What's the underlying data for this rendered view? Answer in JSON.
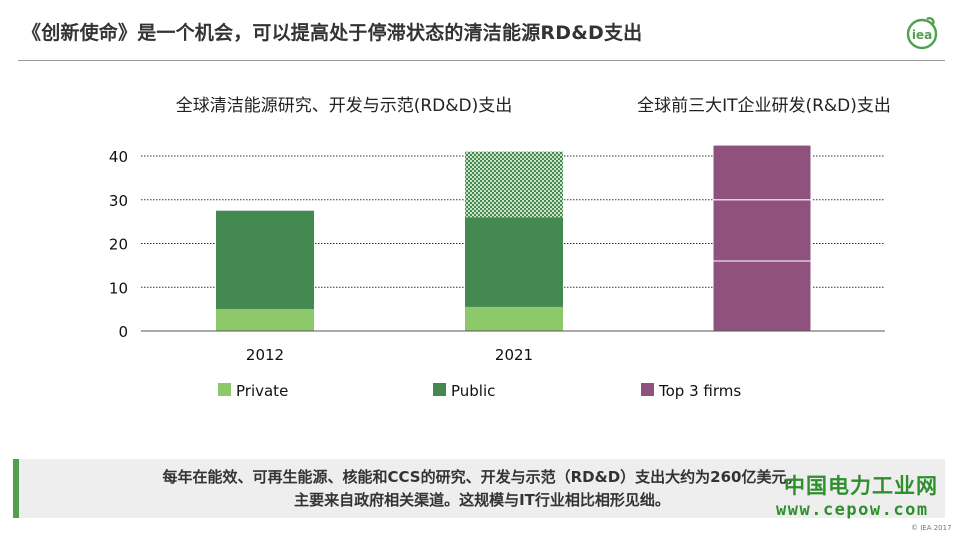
{
  "slide": {
    "title": "《创新使命》是一个机会，可以提高处于停滞状态的清洁能源RD&D支出",
    "logo_text": "iea",
    "footer_line1": "每年在能效、可再生能源、核能和CCS的研究、开发与示范（RD&D）支出大约为260亿美元，",
    "footer_line2": "主要来自政府相关渠道。这规模与IT行业相比相形见绌。",
    "watermark": "中国电力工业网",
    "watermark_url": "www.cepow.com",
    "copyright": "© IEA 2017"
  },
  "colors": {
    "private": "#8dc96a",
    "public": "#448a50",
    "top3": "#8f527f",
    "accent": "#50a14f"
  },
  "chart_data": {
    "type": "bar",
    "stacked": true,
    "group_titles": [
      "全球清洁能源研究、开发与示范(RD&D)支出",
      "全球前三大IT企业研发(R&D)支出"
    ],
    "categories": [
      "2012",
      "2021",
      ""
    ],
    "ylim": [
      0,
      40
    ],
    "yticks": [
      0,
      10,
      20,
      30,
      40
    ],
    "grid": true,
    "legend_position": "bottom",
    "legend": [
      "Private",
      "Public",
      "Top 3 firms"
    ],
    "segments": [
      {
        "category": "2012",
        "series": "Private",
        "y0": 0,
        "y1": 5
      },
      {
        "category": "2012",
        "series": "Public",
        "y0": 5,
        "y1": 27.5
      },
      {
        "category": "2021",
        "series": "Private",
        "y0": 0,
        "y1": 5.5
      },
      {
        "category": "2021",
        "series": "Public",
        "y0": 5.5,
        "y1": 26
      },
      {
        "category": "2021",
        "series": "Public",
        "pattern": "hatched",
        "y0": 26,
        "y1": 41
      },
      {
        "category": "",
        "series": "Top 3 firms",
        "y0": 0,
        "y1": 16
      },
      {
        "category": "",
        "series": "Top 3 firms",
        "y0": 16,
        "y1": 30
      },
      {
        "category": "",
        "series": "Top 3 firms",
        "y0": 30,
        "y1": 42.5
      }
    ]
  }
}
